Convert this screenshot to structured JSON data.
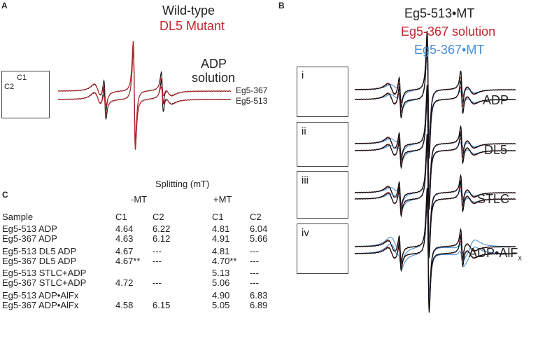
{
  "panel_a": {
    "label": "A",
    "legend": {
      "wild_type": "Wild-type",
      "mutant": "DL5 Mutant"
    },
    "condition": {
      "line1": "ADP",
      "line2": "solution"
    },
    "trace_labels": [
      "Eg5-367",
      "Eg5-513"
    ],
    "inset_labels": {
      "c1": "C1",
      "c2": "C2"
    }
  },
  "panel_b": {
    "label": "B",
    "legend": {
      "black": "Eg5-513•MT",
      "red": "Eg5-367 solution",
      "blue": "Eg5-367•MT"
    },
    "insets": [
      "i",
      "ii",
      "iii",
      "iv"
    ],
    "conditions": [
      "ADP",
      "DL5",
      "STLC",
      "ADP•AlF"
    ],
    "alfx_subscript": "x"
  },
  "panel_c": {
    "label": "C",
    "title": "Splitting (mT)",
    "groups": [
      "-MT",
      "+MT"
    ],
    "headers": [
      "Sample",
      "C1",
      "C2",
      "C1",
      "C2"
    ],
    "rows": [
      [
        "Eg5-513 ADP",
        "4.64",
        "6.22",
        "4.81",
        "6.04"
      ],
      [
        "Eg5-367 ADP",
        "4.63",
        "6.12",
        "4.91",
        "5.66"
      ],
      [
        "Eg5-513 DL5 ADP",
        "4.67",
        "---",
        "4.81",
        "---"
      ],
      [
        "Eg5-367 DL5 ADP",
        "4.67**",
        "---",
        "4.70**",
        "---"
      ],
      [
        "Eg5-513 STLC+ADP",
        "",
        "",
        "5.13",
        "---"
      ],
      [
        "Eg5-367 STLC+ADP",
        "4.72",
        "---",
        "5.06",
        "---"
      ],
      [
        "Eg5-513 ADP•AlFx",
        "",
        "",
        "4.90",
        "6.83"
      ],
      [
        "Eg5-367 ADP•AlFx",
        "4.58",
        "6.15",
        "5.05",
        "6.89"
      ]
    ]
  },
  "colors": {
    "black": "#111111",
    "red": "#c0272d",
    "blue": "#4a8fd6"
  }
}
